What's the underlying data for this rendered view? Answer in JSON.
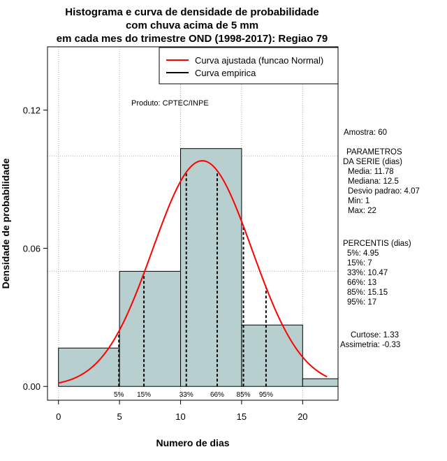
{
  "chart_data": {
    "type": "bar",
    "title_lines": [
      "Histograma e curva de densidade de probabilidade",
      "com chuva acima de 5 mm",
      "em cada mes do trimestre OND (1998-2017): Regiao 79"
    ],
    "xlabel": "Numero de dias",
    "ylabel": "Densidade de probabilidade",
    "xlim": [
      -0.9,
      22.9
    ],
    "ylim": [
      -0.006,
      0.1475
    ],
    "x_ticks": [
      0,
      5,
      10,
      15,
      20
    ],
    "y_ticks": [
      0.0,
      0.06,
      0.12
    ],
    "y_tick_labels": [
      "0.00",
      "0.06",
      "0.12"
    ],
    "x_grid": [
      0,
      5,
      10,
      15,
      20
    ],
    "y_grid": [
      0.05,
      0.1
    ],
    "bins": [
      {
        "start": 0,
        "end": 5,
        "density": 0.01667
      },
      {
        "start": 5,
        "end": 10,
        "density": 0.05
      },
      {
        "start": 10,
        "end": 15,
        "density": 0.1033
      },
      {
        "start": 15,
        "end": 20,
        "density": 0.02667
      },
      {
        "start": 20,
        "end": 25,
        "density": 0.00333
      }
    ],
    "normal_fit": {
      "mean": 11.78,
      "sd": 4.07,
      "x_from": 0,
      "x_to": 22
    },
    "percentiles": [
      {
        "label": "5%",
        "value": 4.95
      },
      {
        "label": "15%",
        "value": 7
      },
      {
        "label": "33%",
        "value": 10.47
      },
      {
        "label": "66%",
        "value": 13
      },
      {
        "label": "85%",
        "value": 15.15
      },
      {
        "label": "95%",
        "value": 17
      }
    ],
    "legend": [
      {
        "label": "Curva ajustada (funcao Normal)",
        "color": "#ff0000"
      },
      {
        "label": "Curva empirica",
        "color": "#000000"
      }
    ],
    "legend_position": "top-right",
    "product_note": "Produto: CPTEC/INPE",
    "colors": {
      "bar_fill": "#b7cfcf",
      "curve": "#ff0000",
      "grid": "#b0b0b0"
    }
  },
  "side_panel": {
    "sample": "Amostra: 60",
    "params_heading_1": "PARAMETROS",
    "params_heading_2": "DA SERIE (dias)",
    "params": [
      "Media: 11.78",
      "Mediana: 12.5",
      "Desvio padrao: 4.07",
      "Min: 1",
      "Max: 22"
    ],
    "percentis_heading": "PERCENTIS (dias)",
    "percentis": [
      "5%: 4.95",
      "15%: 7",
      "33%: 10.47",
      "66%: 13",
      "85%: 15.15",
      "95%: 17"
    ],
    "curtose": "Curtose: 1.33",
    "assimetria": "Assimetria: -0.33"
  }
}
